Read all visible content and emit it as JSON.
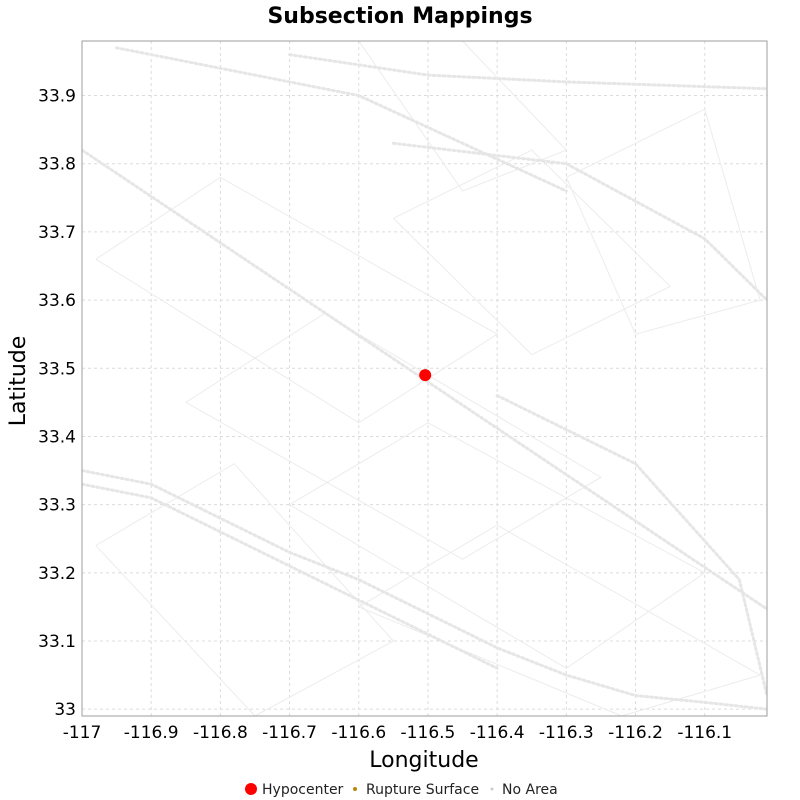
{
  "chart_data": {
    "type": "scatter",
    "title": "Subsection Mappings",
    "xlabel": "Longitude",
    "ylabel": "Latitude",
    "xlim": [
      -117.0,
      -116.01
    ],
    "ylim": [
      32.99,
      33.98
    ],
    "x_ticks": [
      -117,
      -116.9,
      -116.8,
      -116.7,
      -116.6,
      -116.5,
      -116.4,
      -116.3,
      -116.2,
      -116.1
    ],
    "x_tick_labels": [
      "-117",
      "-116.9",
      "-116.8",
      "-116.7",
      "-116.6",
      "-116.5",
      "-116.4",
      "-116.3",
      "-116.2",
      "-116.1"
    ],
    "y_ticks": [
      33.0,
      33.1,
      33.2,
      33.3,
      33.4,
      33.5,
      33.6,
      33.7,
      33.8,
      33.9
    ],
    "y_tick_labels": [
      "33",
      "33.1",
      "33.2",
      "33.3",
      "33.4",
      "33.5",
      "33.6",
      "33.7",
      "33.8",
      "33.9"
    ],
    "grid": true,
    "legend_position": "bottom",
    "series": [
      {
        "name": "Hypocenter",
        "color": "#ff0000",
        "points": [
          {
            "x": -116.504,
            "y": 33.49
          }
        ]
      },
      {
        "name": "Rupture Surface",
        "color": "#b8860b",
        "points": []
      },
      {
        "name": "No Area",
        "color": "#cccccc",
        "points": []
      }
    ],
    "background_faults": [
      {
        "x": [
          -117.0,
          -116.0
        ],
        "y": [
          33.82,
          33.14
        ]
      },
      {
        "x": [
          -117.0,
          -116.9,
          -116.8,
          -116.7,
          -116.6,
          -116.5,
          -116.4,
          -116.3,
          -116.2,
          -116.1,
          -116.01
        ],
        "y": [
          33.35,
          33.33,
          33.28,
          33.23,
          33.19,
          33.14,
          33.09,
          33.05,
          33.02,
          33.01,
          33.0
        ]
      },
      {
        "x": [
          -117.0,
          -116.9,
          -116.8,
          -116.7,
          -116.6,
          -116.5,
          -116.4
        ],
        "y": [
          33.33,
          33.31,
          33.26,
          33.21,
          33.16,
          33.11,
          33.06
        ]
      },
      {
        "x": [
          -116.7,
          -116.5,
          -116.3,
          -116.01
        ],
        "y": [
          33.96,
          33.93,
          33.92,
          33.91
        ]
      },
      {
        "x": [
          -116.95,
          -116.8,
          -116.6,
          -116.45,
          -116.3
        ],
        "y": [
          33.97,
          33.94,
          33.9,
          33.83,
          33.76
        ]
      },
      {
        "x": [
          -116.55,
          -116.3,
          -116.1,
          -116.01
        ],
        "y": [
          33.83,
          33.8,
          33.69,
          33.6
        ]
      },
      {
        "x": [
          -116.4,
          -116.2,
          -116.05,
          -116.01
        ],
        "y": [
          33.46,
          33.36,
          33.19,
          33.02
        ]
      }
    ],
    "background_blocks": [
      {
        "x": [
          -116.98,
          -116.8,
          -116.4,
          -116.6,
          -116.98
        ],
        "y": [
          33.66,
          33.78,
          33.55,
          33.42,
          33.66
        ]
      },
      {
        "x": [
          -116.85,
          -116.65,
          -116.25,
          -116.45,
          -116.85
        ],
        "y": [
          33.45,
          33.58,
          33.34,
          33.22,
          33.45
        ]
      },
      {
        "x": [
          -116.7,
          -116.5,
          -116.1,
          -116.3,
          -116.7
        ],
        "y": [
          33.3,
          33.42,
          33.2,
          33.06,
          33.3
        ]
      },
      {
        "x": [
          -116.6,
          -116.4,
          -116.02,
          -116.22,
          -116.6
        ],
        "y": [
          33.15,
          33.27,
          33.05,
          32.99,
          33.15
        ]
      },
      {
        "x": [
          -116.98,
          -116.78,
          -116.55,
          -116.75,
          -116.98
        ],
        "y": [
          33.24,
          33.36,
          33.1,
          32.99,
          33.24
        ]
      },
      {
        "x": [
          -116.6,
          -116.45,
          -116.3,
          -116.45,
          -116.6
        ],
        "y": [
          33.98,
          33.98,
          33.82,
          33.76,
          33.98
        ]
      },
      {
        "x": [
          -116.3,
          -116.1,
          -116.02,
          -116.2,
          -116.3
        ],
        "y": [
          33.78,
          33.88,
          33.6,
          33.55,
          33.78
        ]
      },
      {
        "x": [
          -116.55,
          -116.35,
          -116.15,
          -116.35,
          -116.55
        ],
        "y": [
          33.72,
          33.82,
          33.62,
          33.52,
          33.72
        ]
      }
    ]
  }
}
